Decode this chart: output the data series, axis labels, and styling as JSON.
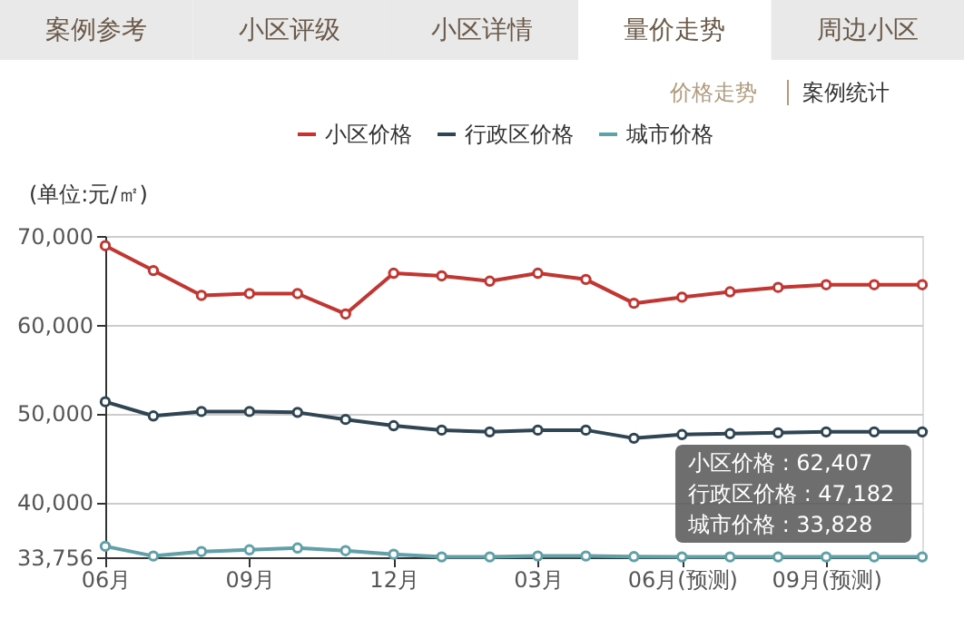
{
  "chart_data": {
    "type": "line",
    "ylabel": "(单位:元/㎡)",
    "categories": [
      "06月",
      null,
      null,
      "09月",
      null,
      null,
      "12月",
      null,
      null,
      "03月",
      null,
      null,
      "06月(预测)",
      null,
      null,
      "09月(预测)",
      null,
      null
    ],
    "series": [
      {
        "name": "小区价格",
        "color": "#c23531",
        "values": [
          68900,
          66100,
          63300,
          63500,
          63500,
          61200,
          65800,
          65500,
          64900,
          65800,
          65100,
          62407,
          63100,
          63700,
          64200,
          64500,
          64500,
          64500
        ]
      },
      {
        "name": "行政区价格",
        "color": "#2f4554",
        "values": [
          51300,
          49700,
          50200,
          50200,
          50100,
          49300,
          48600,
          48100,
          47900,
          48100,
          48100,
          47182,
          47600,
          47700,
          47800,
          47900,
          47900,
          47900
        ]
      },
      {
        "name": "城市价格",
        "color": "#61a0a8",
        "values": [
          35000,
          33900,
          34400,
          34600,
          34800,
          34500,
          34100,
          33800,
          33800,
          33900,
          33900,
          33828,
          33800,
          33800,
          33800,
          33800,
          33800,
          33800
        ]
      }
    ],
    "ylim": [
      33756,
      70000
    ],
    "yticks": [
      {
        "value": 33756,
        "label": "33,756"
      },
      {
        "value": 40000,
        "label": "40,000"
      },
      {
        "value": 50000,
        "label": "50,000"
      },
      {
        "value": 60000,
        "label": "60,000"
      },
      {
        "value": 70000,
        "label": "70,000"
      }
    ],
    "grid": "y",
    "legend": "top",
    "marker": "circle",
    "line_style": "solid",
    "annotations": [
      "案例参考",
      "小区评级",
      "小区详情",
      "量价走势",
      "周边小区",
      "价格走势",
      "案例统计",
      "小区价格 : 62,407",
      "行政区价格 : 47,182",
      "城市价格 : 33,828"
    ]
  }
}
